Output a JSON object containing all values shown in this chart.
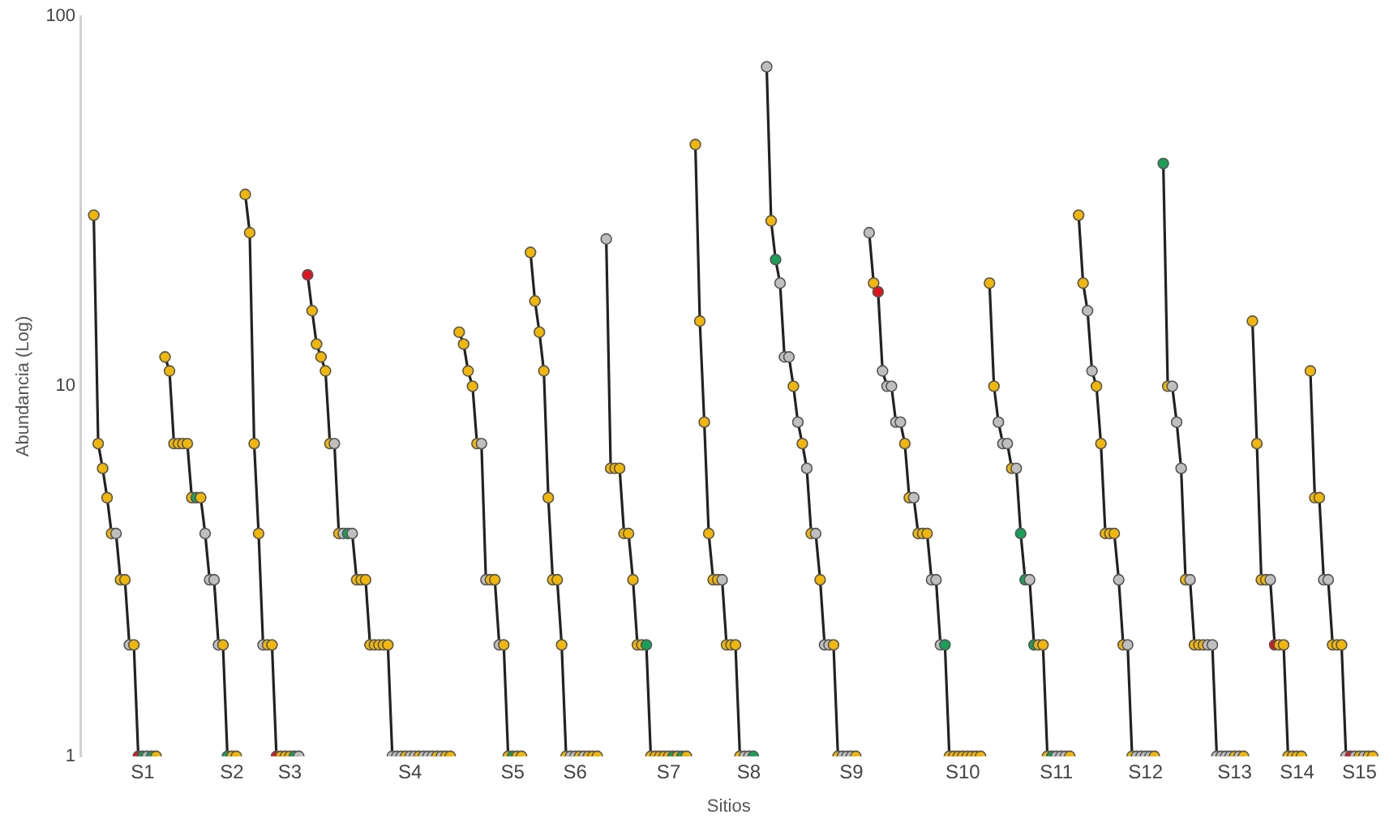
{
  "chart_data": {
    "type": "line",
    "xlabel": "Sitios",
    "ylabel": "Abundancia (Log)",
    "log": "y",
    "ylim": [
      1,
      100
    ],
    "yticks": [
      1,
      10,
      100
    ],
    "categories": [
      null,
      null,
      null,
      null,
      null,
      null,
      null,
      null,
      null,
      null,
      null,
      null,
      null,
      null,
      "S1",
      null,
      null,
      null,
      null,
      null,
      null,
      null,
      null,
      null,
      null,
      null,
      null,
      null,
      null,
      null,
      null,
      null,
      null,
      null,
      "S2",
      null,
      null,
      null,
      null,
      null,
      null,
      null,
      null,
      null,
      null,
      null,
      null,
      "S3",
      null,
      null,
      null,
      null,
      null,
      null,
      null,
      null,
      null,
      null,
      null,
      null,
      null,
      null,
      null,
      null,
      null,
      null,
      null,
      null,
      null,
      null,
      null,
      null,
      null,
      null,
      "S4",
      null,
      null,
      null,
      null,
      null,
      null,
      null,
      null,
      null,
      null,
      null,
      null,
      null,
      null,
      null,
      null,
      null,
      null,
      null,
      null,
      null,
      null,
      "S5",
      null,
      null,
      null,
      null,
      null,
      null,
      null,
      null,
      null,
      null,
      null,
      null,
      null,
      "S6",
      null,
      null,
      null,
      null,
      null,
      null,
      null,
      null,
      null,
      null,
      null,
      null,
      null,
      null,
      null,
      null,
      null,
      null,
      null,
      null,
      "S7",
      null,
      null,
      null,
      null,
      null,
      null,
      null,
      null,
      null,
      null,
      null,
      null,
      null,
      null,
      null,
      null,
      null,
      "S8",
      null,
      null,
      null,
      null,
      null,
      null,
      null,
      null,
      null,
      null,
      null,
      null,
      null,
      null,
      null,
      null,
      null,
      null,
      null,
      null,
      null,
      null,
      "S9",
      null,
      null,
      null,
      null,
      null,
      null,
      null,
      null,
      null,
      null,
      null,
      null,
      null,
      null,
      null,
      null,
      null,
      null,
      null,
      null,
      null,
      null,
      null,
      null,
      "S10",
      null,
      null,
      null,
      null,
      null,
      null,
      null,
      null,
      null,
      null,
      null,
      null,
      null,
      null,
      null,
      null,
      null,
      null,
      null,
      null,
      "S11",
      null,
      null,
      null,
      null,
      null,
      null,
      null,
      null,
      null,
      null,
      null,
      null,
      null,
      null,
      null,
      null,
      null,
      null,
      null,
      "S12",
      null,
      null,
      null,
      null,
      null,
      null,
      null,
      null,
      null,
      null,
      null,
      null,
      null,
      null,
      null,
      null,
      null,
      null,
      null,
      "S13",
      null,
      null,
      null,
      null,
      null,
      null,
      null,
      null,
      null,
      null,
      null,
      null,
      null,
      "S14",
      null,
      null,
      null,
      null,
      null,
      null,
      null,
      null,
      null,
      null,
      null,
      null,
      null,
      "S15",
      null,
      null,
      null,
      null
    ],
    "grid": false,
    "legend": false,
    "marker": "circle",
    "line_style": "solid",
    "series": [
      {
        "color": "#222222",
        "values": [
          null,
          null,
          null,
          29,
          7,
          6,
          5,
          4,
          4,
          3,
          3,
          2,
          2,
          1,
          1,
          1,
          1,
          1,
          null,
          12,
          11,
          7,
          7,
          7,
          7,
          5,
          5,
          5,
          4,
          3,
          3,
          2,
          2,
          1,
          1,
          1,
          null,
          33,
          26,
          7,
          4,
          2,
          2,
          2,
          1,
          1,
          1,
          1,
          1,
          1,
          null,
          20,
          16,
          13,
          12,
          11,
          7,
          7,
          4,
          4,
          4,
          4,
          3,
          3,
          3,
          2,
          2,
          2,
          2,
          2,
          1,
          1,
          1,
          1,
          1,
          1,
          1,
          1,
          1,
          1,
          1,
          1,
          1,
          1,
          null,
          14,
          13,
          11,
          10,
          7,
          7,
          3,
          3,
          3,
          2,
          2,
          1,
          1,
          1,
          1,
          null,
          23,
          17,
          14,
          11,
          5,
          3,
          3,
          2,
          1,
          1,
          1,
          1,
          1,
          1,
          1,
          1,
          null,
          25,
          6,
          6,
          6,
          4,
          4,
          3,
          2,
          2,
          2,
          1,
          1,
          1,
          1,
          1,
          1,
          1,
          1,
          1,
          null,
          45,
          15,
          8,
          4,
          3,
          3,
          3,
          2,
          2,
          2,
          1,
          1,
          1,
          1,
          null,
          null,
          73,
          28,
          22,
          19,
          12,
          12,
          10,
          8,
          7,
          6,
          4,
          4,
          3,
          2,
          2,
          2,
          1,
          1,
          1,
          1,
          1,
          null,
          null,
          26,
          19,
          18,
          11,
          10,
          10,
          8,
          8,
          7,
          5,
          5,
          4,
          4,
          4,
          3,
          3,
          2,
          2,
          1,
          1,
          1,
          1,
          1,
          1,
          1,
          1,
          null,
          19,
          10,
          8,
          7,
          7,
          6,
          6,
          4,
          3,
          3,
          2,
          2,
          2,
          1,
          1,
          1,
          1,
          1,
          1,
          null,
          29,
          19,
          16,
          11,
          10,
          7,
          4,
          4,
          4,
          3,
          2,
          2,
          1,
          1,
          1,
          1,
          1,
          1,
          null,
          40,
          10,
          10,
          8,
          6,
          3,
          3,
          2,
          2,
          2,
          2,
          2,
          1,
          1,
          1,
          1,
          1,
          1,
          1,
          null,
          15,
          7,
          3,
          3,
          3,
          2,
          2,
          2,
          1,
          1,
          1,
          1,
          null,
          11,
          5,
          5,
          3,
          3,
          2,
          2,
          2,
          1,
          1,
          1,
          1,
          1,
          1,
          1,
          null
        ],
        "colors": [
          null,
          null,
          null,
          "#f2b705",
          "#f2b705",
          "#f2b705",
          "#f2b705",
          "#f2b705",
          "#bfbfbf",
          "#f2b705",
          "#f2b705",
          "#bfbfbf",
          "#f2b705",
          "#e0141e",
          "#18a058",
          "#bfbfbf",
          "#18a058",
          "#f2b705",
          null,
          "#f2b705",
          "#f2b705",
          "#f2b705",
          "#f2b705",
          "#f2b705",
          "#f2b705",
          "#f2b705",
          "#18a058",
          "#f2b705",
          "#bfbfbf",
          "#bfbfbf",
          "#bfbfbf",
          "#bfbfbf",
          "#f2b705",
          "#18a058",
          "#f2b705",
          "#f2b705",
          null,
          "#f2b705",
          "#f2b705",
          "#f2b705",
          "#f2b705",
          "#bfbfbf",
          "#f2b705",
          "#f2b705",
          "#e0141e",
          "#f2b705",
          "#f2b705",
          "#f2b705",
          "#18a058",
          "#bfbfbf",
          null,
          "#e0141e",
          "#f2b705",
          "#f2b705",
          "#f2b705",
          "#f2b705",
          "#f2b705",
          "#bfbfbf",
          "#f2b705",
          "#bfbfbf",
          "#18a058",
          "#bfbfbf",
          "#f2b705",
          "#f2b705",
          "#f2b705",
          "#f2b705",
          "#f2b705",
          "#f2b705",
          "#f2b705",
          "#f2b705",
          "#bfbfbf",
          "#bfbfbf",
          "#bfbfbf",
          "#f2b705",
          "#bfbfbf",
          "#bfbfbf",
          "#f2b705",
          "#bfbfbf",
          "#bfbfbf",
          "#bfbfbf",
          "#f2b705",
          "#bfbfbf",
          "#f2b705",
          "#f2b705",
          null,
          "#f2b705",
          "#f2b705",
          "#f2b705",
          "#f2b705",
          "#f2b705",
          "#bfbfbf",
          "#bfbfbf",
          "#f2b705",
          "#f2b705",
          "#bfbfbf",
          "#f2b705",
          "#f2b705",
          "#18a058",
          "#f2b705",
          "#f2b705",
          null,
          "#f2b705",
          "#f2b705",
          "#f2b705",
          "#f2b705",
          "#f2b705",
          "#f2b705",
          "#f2b705",
          "#f2b705",
          "#f2b705",
          "#bfbfbf",
          "#bfbfbf",
          "#f2b705",
          "#bfbfbf",
          "#f2b705",
          "#f2b705",
          "#f2b705",
          null,
          "#bfbfbf",
          "#f2b705",
          "#f2b705",
          "#f2b705",
          "#f2b705",
          "#f2b705",
          "#f2b705",
          "#f2b705",
          "#f2b705",
          "#18a058",
          "#f2b705",
          "#f2b705",
          "#f2b705",
          "#f2b705",
          "#f2b705",
          "#18a058",
          "#f2b705",
          "#18a058",
          "#f2b705",
          null,
          "#f2b705",
          "#f2b705",
          "#f2b705",
          "#f2b705",
          "#f2b705",
          "#f2b705",
          "#bfbfbf",
          "#f2b705",
          "#f2b705",
          "#f2b705",
          "#f2b705",
          "#bfbfbf",
          "#bfbfbf",
          "#18a058",
          null,
          null,
          "#bfbfbf",
          "#f2b705",
          "#18a058",
          "#bfbfbf",
          "#bfbfbf",
          "#bfbfbf",
          "#f2b705",
          "#bfbfbf",
          "#f2b705",
          "#bfbfbf",
          "#f2b705",
          "#bfbfbf",
          "#f2b705",
          "#bfbfbf",
          "#bfbfbf",
          "#f2b705",
          "#f2b705",
          "#bfbfbf",
          "#bfbfbf",
          "#bfbfbf",
          "#f2b705",
          null,
          null,
          "#bfbfbf",
          "#f2b705",
          "#e0141e",
          "#bfbfbf",
          "#bfbfbf",
          "#bfbfbf",
          "#bfbfbf",
          "#bfbfbf",
          "#f2b705",
          "#f2b705",
          "#bfbfbf",
          "#f2b705",
          "#f2b705",
          "#f2b705",
          "#bfbfbf",
          "#bfbfbf",
          "#bfbfbf",
          "#18a058",
          "#f2b705",
          "#f2b705",
          "#f2b705",
          "#f2b705",
          "#f2b705",
          "#f2b705",
          "#f2b705",
          "#f2b705",
          null,
          "#f2b705",
          "#f2b705",
          "#bfbfbf",
          "#bfbfbf",
          "#bfbfbf",
          "#f2b705",
          "#bfbfbf",
          "#18a058",
          "#18a058",
          "#bfbfbf",
          "#18a058",
          "#f2b705",
          "#f2b705",
          "#f2b705",
          "#18a058",
          "#bfbfbf",
          "#bfbfbf",
          "#bfbfbf",
          "#f2b705",
          null,
          "#f2b705",
          "#f2b705",
          "#bfbfbf",
          "#bfbfbf",
          "#f2b705",
          "#f2b705",
          "#f2b705",
          "#f2b705",
          "#f2b705",
          "#bfbfbf",
          "#f2b705",
          "#bfbfbf",
          "#f2b705",
          "#bfbfbf",
          "#bfbfbf",
          "#bfbfbf",
          "#bfbfbf",
          "#f2b705",
          null,
          "#18a058",
          "#f2b705",
          "#bfbfbf",
          "#bfbfbf",
          "#bfbfbf",
          "#f2b705",
          "#bfbfbf",
          "#f2b705",
          "#f2b705",
          "#f2b705",
          "#bfbfbf",
          "#bfbfbf",
          "#bfbfbf",
          "#bfbfbf",
          "#bfbfbf",
          "#bfbfbf",
          "#f2b705",
          "#bfbfbf",
          "#f2b705",
          null,
          "#f2b705",
          "#f2b705",
          "#f2b705",
          "#f2b705",
          "#bfbfbf",
          "#e0141e",
          "#f2b705",
          "#f2b705",
          "#f2b705",
          "#f2b705",
          "#f2b705",
          "#f2b705",
          null,
          "#f2b705",
          "#f2b705",
          "#f2b705",
          "#bfbfbf",
          "#bfbfbf",
          "#f2b705",
          "#f2b705",
          "#f2b705",
          "#bfbfbf",
          "#e0141e",
          "#bfbfbf",
          "#f2b705",
          "#bfbfbf",
          "#f2b705",
          "#f2b705",
          null
        ]
      }
    ]
  }
}
